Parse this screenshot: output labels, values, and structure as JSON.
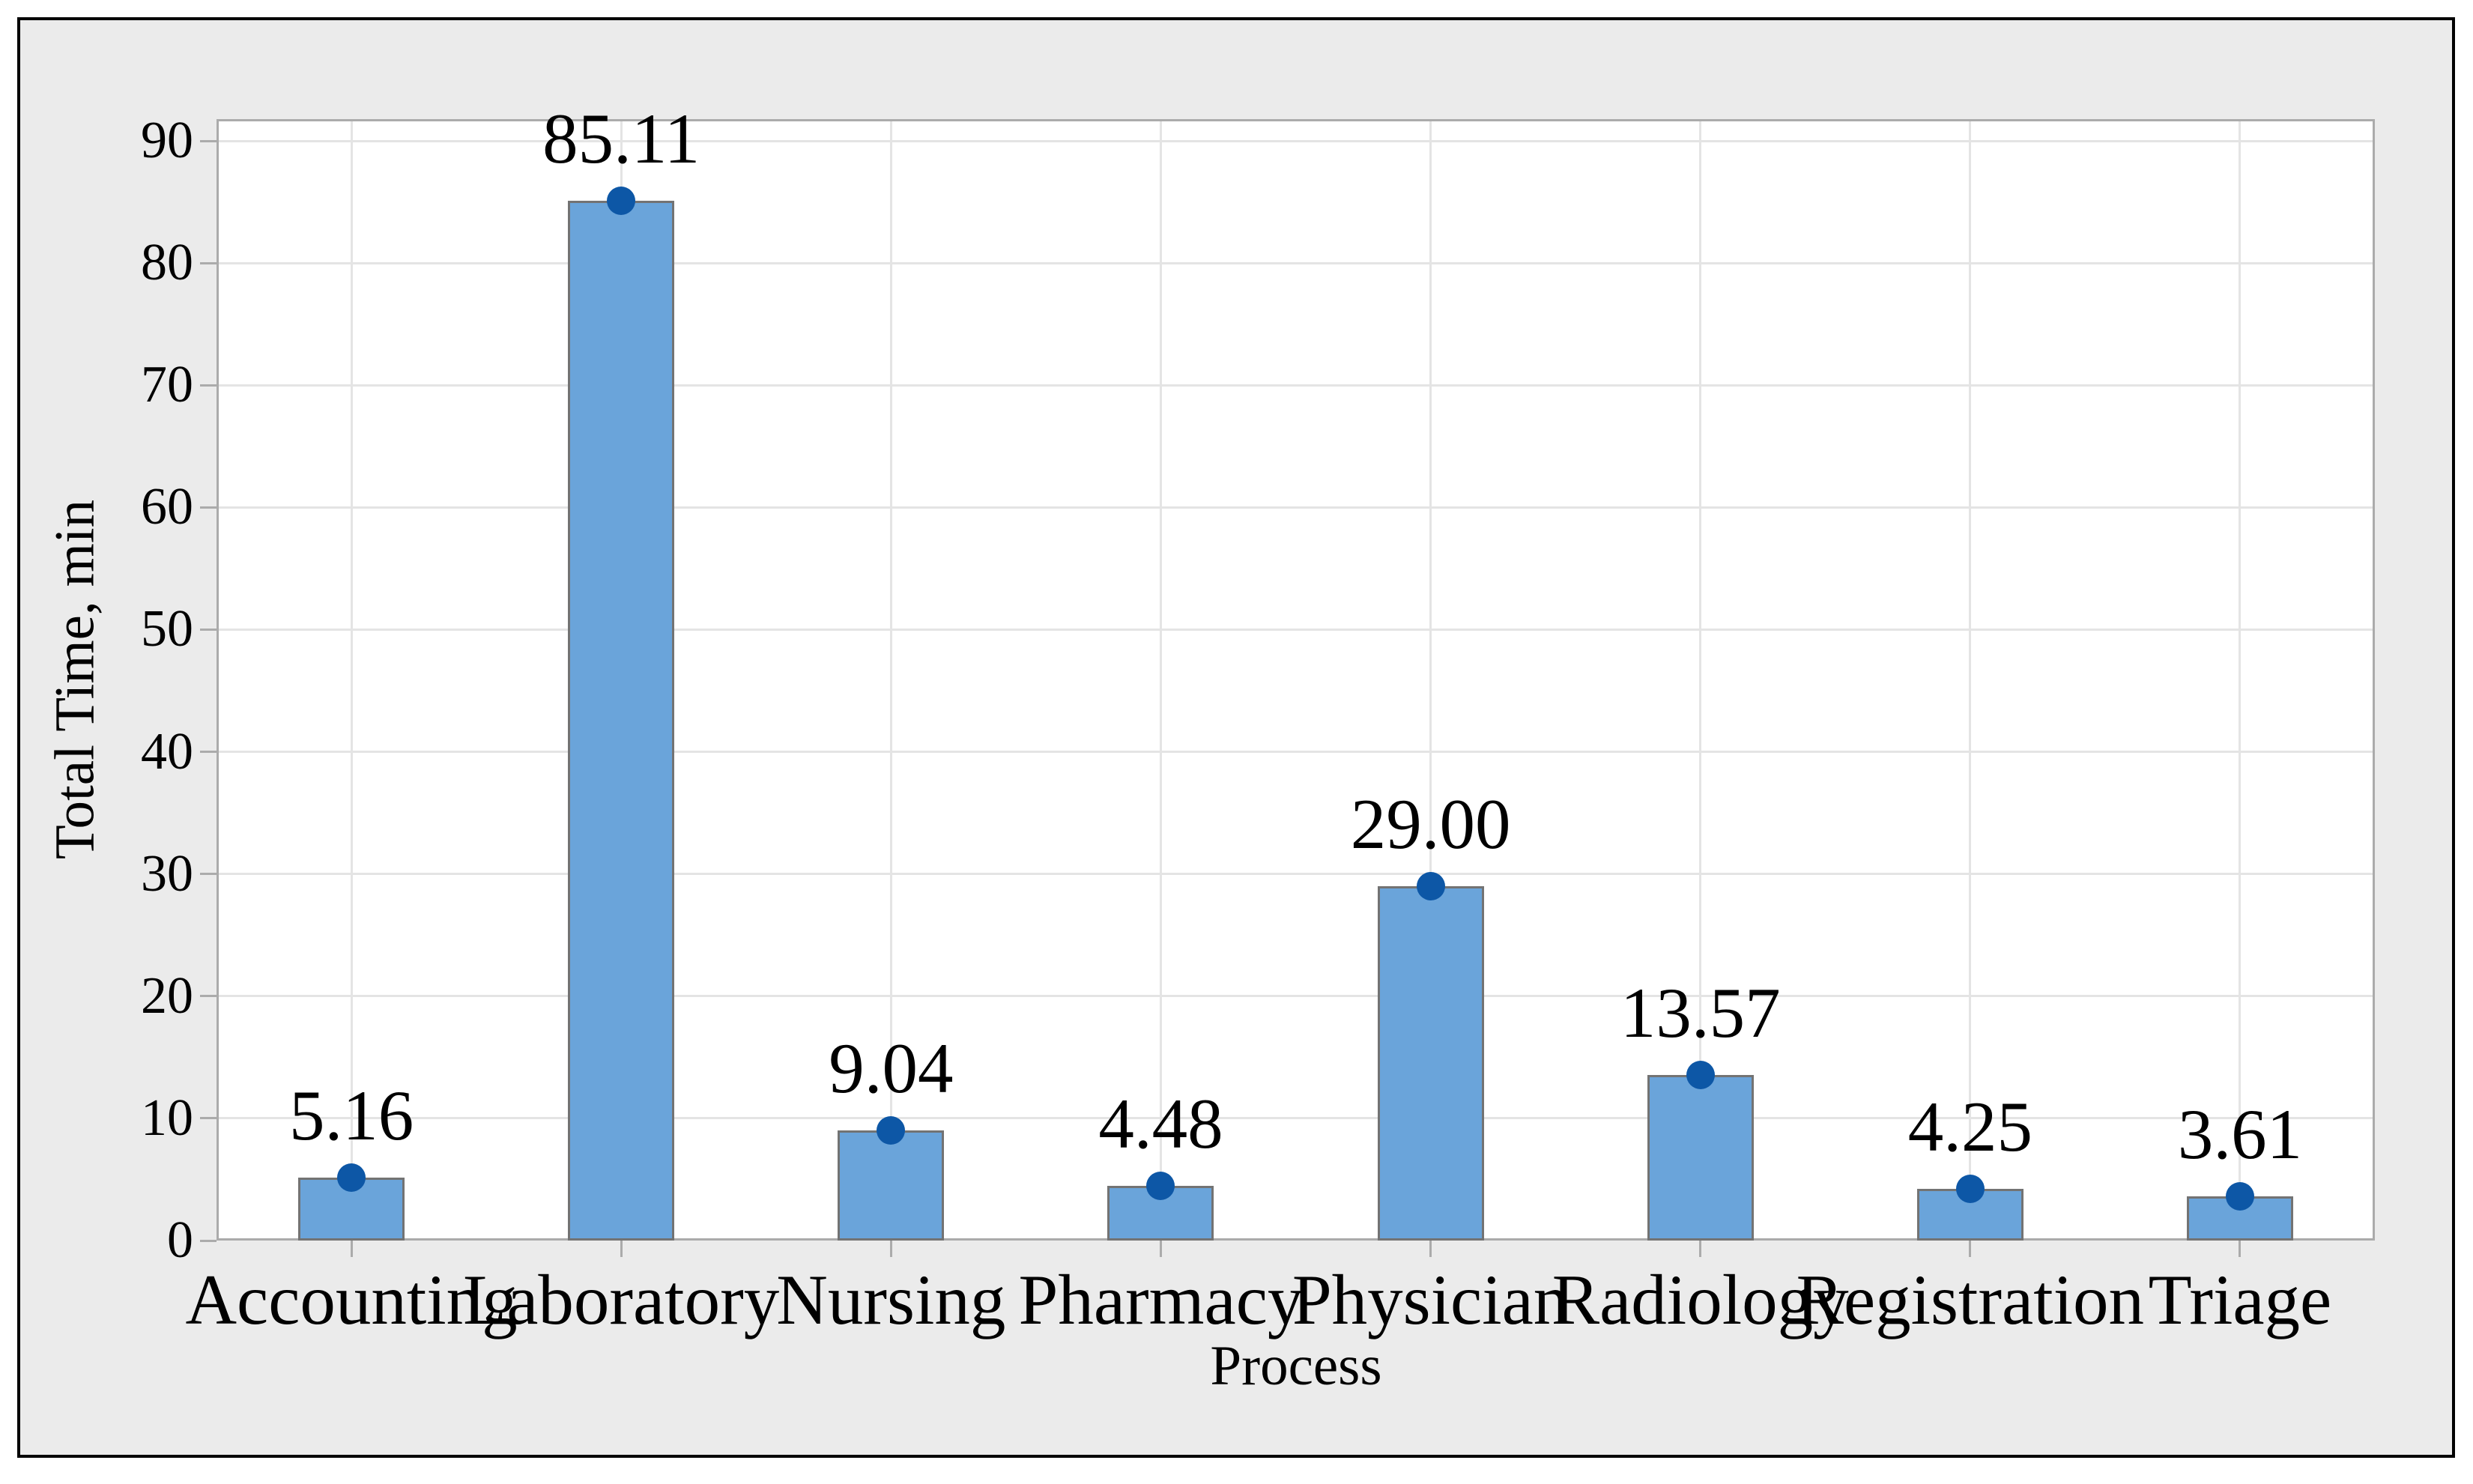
{
  "chart_data": {
    "type": "bar",
    "title": "",
    "xlabel": "Process",
    "ylabel": "Total Time, min",
    "categories": [
      "Accounting",
      "Laboratory",
      "Nursing",
      "Pharmacy",
      "Physician",
      "Radiology",
      "Registration",
      "Triage"
    ],
    "values": [
      5.16,
      85.11,
      9.04,
      4.48,
      29.0,
      13.57,
      4.25,
      3.61
    ],
    "value_labels": [
      "5.16",
      "85.11",
      "9.04",
      "4.48",
      "29.00",
      "13.57",
      "4.25",
      "3.61"
    ],
    "ylim": [
      0,
      90
    ],
    "yticks": [
      0,
      10,
      20,
      30,
      40,
      50,
      60,
      70,
      80,
      90
    ],
    "grid": "horizontal-and-vertical",
    "legend": false,
    "marker": "mean-dot"
  },
  "colors": {
    "bar_fill": "#6AA4DA",
    "bar_border": "#737373",
    "marker": "#0D57A6",
    "plot_bg": "#FFFFFF",
    "frame_bg": "#EBEBEB",
    "frame_border": "#000000",
    "grid": "#E4E4E4",
    "axis": "#ABABAB",
    "text": "#000000"
  }
}
